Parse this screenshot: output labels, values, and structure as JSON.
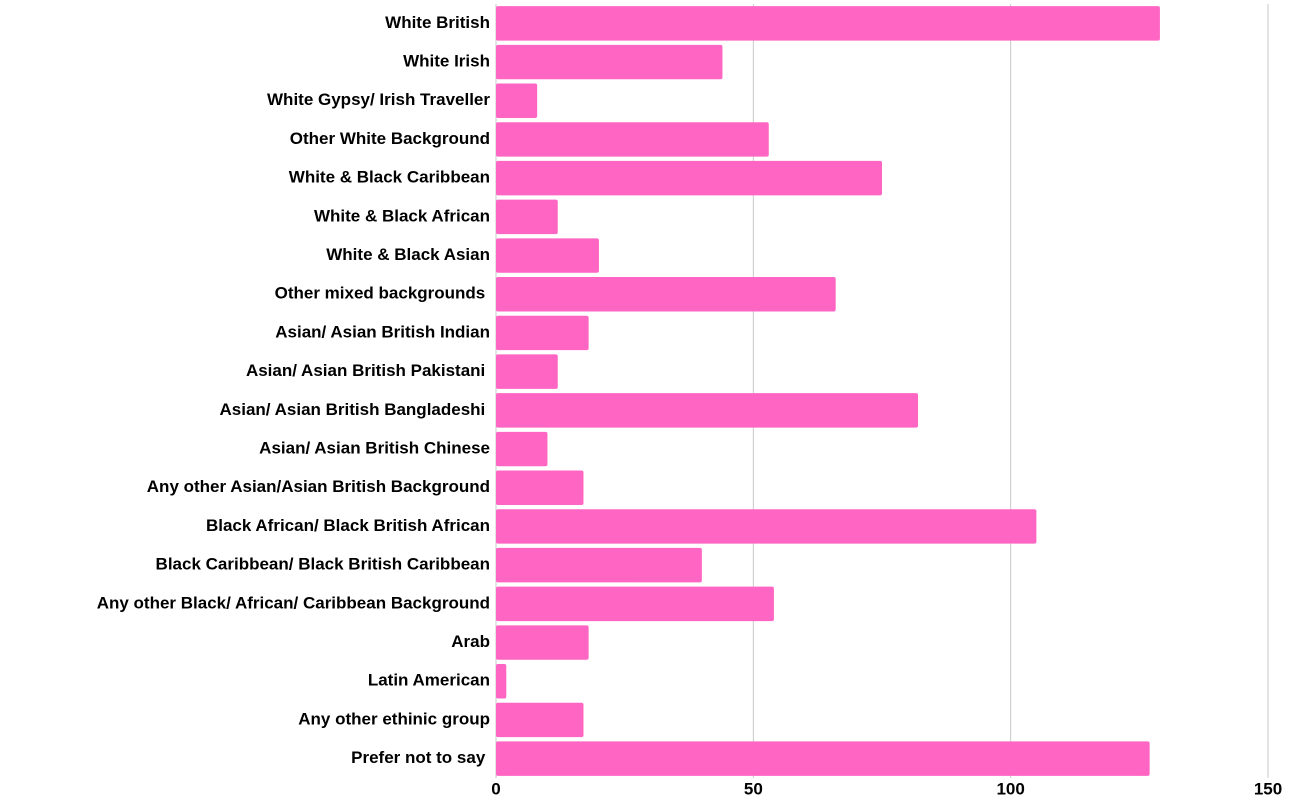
{
  "chart_data": {
    "type": "bar",
    "orientation": "horizontal",
    "categories": [
      "White British",
      "White Irish",
      "White Gypsy/ Irish Traveller",
      "Other White Background",
      "White & Black Caribbean",
      "White & Black African",
      "White & Black Asian",
      "Other mixed backgrounds ",
      "Asian/ Asian British Indian",
      "Asian/ Asian British Pakistani ",
      "Asian/ Asian British Bangladeshi ",
      "Asian/ Asian British Chinese",
      "Any other Asian/Asian British Background",
      "Black African/ Black British African",
      "Black Caribbean/ Black British Caribbean",
      "Any other Black/ African/ Caribbean Background",
      "Arab",
      "Latin American",
      "Any other ethinic group",
      "Prefer not to say "
    ],
    "values": [
      129,
      44,
      8,
      53,
      75,
      12,
      20,
      66,
      18,
      12,
      82,
      10,
      17,
      105,
      40,
      54,
      18,
      2,
      17,
      127
    ],
    "color": "#ff66c4",
    "xlim": [
      0,
      150
    ],
    "xticks": [
      0,
      50,
      100,
      150
    ],
    "grid": true
  }
}
